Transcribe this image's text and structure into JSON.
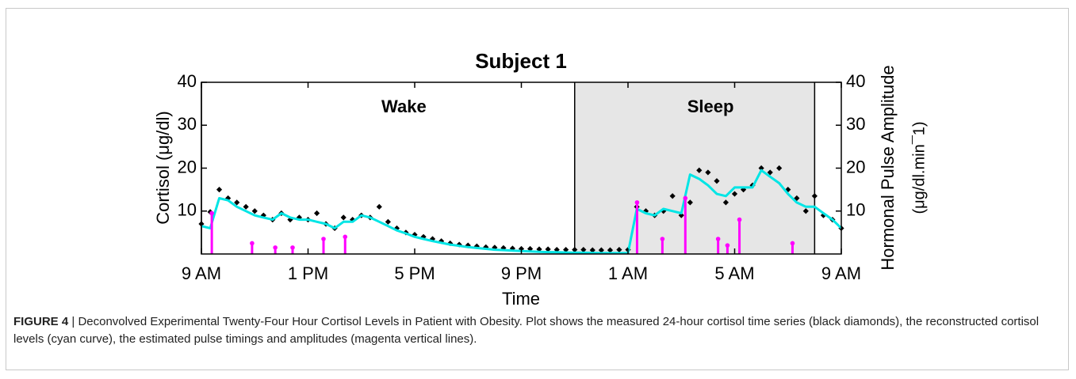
{
  "chart_data": {
    "type": "line",
    "title": "Subject 1",
    "xlabel": "Time",
    "ylabel": "Cortisol (μg/dl)",
    "y2label": [
      "Hormonal Pulse Amplitude",
      "(μg/dl.min¯1)"
    ],
    "xlim": [
      9,
      33
    ],
    "xticks": [
      {
        "value": 9,
        "label": "9 AM"
      },
      {
        "value": 13,
        "label": "1 PM"
      },
      {
        "value": 17,
        "label": "5 PM"
      },
      {
        "value": 21,
        "label": "9 PM"
      },
      {
        "value": 25,
        "label": "1 AM"
      },
      {
        "value": 29,
        "label": "5 AM"
      },
      {
        "value": 33,
        "label": "9 AM"
      }
    ],
    "ylim": [
      0,
      40
    ],
    "yticks": [
      10,
      20,
      30,
      40
    ],
    "y2lim": [
      0,
      40
    ],
    "y2ticks": [
      10,
      20,
      30,
      40
    ],
    "regions": [
      {
        "label": "Wake",
        "range": [
          9,
          23
        ]
      },
      {
        "label": "Sleep",
        "range": [
          23,
          32
        ],
        "color": "#e6e6e6"
      }
    ],
    "x": [
      9,
      9.33,
      9.67,
      10,
      10.33,
      10.67,
      11,
      11.33,
      11.67,
      12,
      12.33,
      12.67,
      13,
      13.33,
      13.67,
      14,
      14.33,
      14.67,
      15,
      15.33,
      15.67,
      16,
      16.33,
      16.67,
      17,
      17.33,
      17.67,
      18,
      18.33,
      18.67,
      19,
      19.33,
      19.67,
      20,
      20.33,
      20.67,
      21,
      21.33,
      21.67,
      22,
      22.33,
      22.67,
      23,
      23.33,
      23.67,
      24,
      24.33,
      24.67,
      25,
      25.33,
      25.67,
      26,
      26.33,
      26.67,
      27,
      27.33,
      27.67,
      28,
      28.33,
      28.67,
      29,
      29.33,
      29.67,
      30,
      30.33,
      30.67,
      31,
      31.33,
      31.67,
      32,
      32.33,
      32.67,
      33
    ],
    "series": [
      {
        "type": "scatter",
        "color": "#000000",
        "values": [
          7,
          9.8,
          15,
          13,
          12,
          11,
          10,
          9,
          8,
          9.5,
          8,
          8.5,
          8,
          9.5,
          7,
          6,
          8.5,
          8,
          9,
          8.5,
          11,
          7.5,
          6,
          5,
          4.5,
          4,
          3.5,
          3,
          2.5,
          2.2,
          2,
          1.8,
          1.6,
          1.5,
          1.4,
          1.3,
          1.2,
          1.2,
          1.1,
          1.1,
          1,
          1,
          1,
          1,
          0.9,
          0.9,
          0.9,
          1,
          1,
          11,
          10,
          9,
          10,
          13.5,
          9,
          12,
          19.5,
          19,
          17,
          12,
          14,
          15,
          16,
          20,
          19,
          20,
          15,
          13,
          10,
          13.5,
          9,
          8,
          6
        ]
      },
      {
        "type": "line",
        "color": "#00e5e5",
        "values": [
          6.5,
          6,
          13,
          12.5,
          11,
          10,
          9,
          8.5,
          8,
          9.5,
          8.5,
          8,
          8,
          7.5,
          7,
          6,
          7.5,
          7.5,
          9,
          8.5,
          7.5,
          6.5,
          5.5,
          4.8,
          4,
          3.5,
          3,
          2.6,
          2.2,
          1.9,
          1.6,
          1.4,
          1.2,
          1,
          0.9,
          0.8,
          0.7,
          0.6,
          0.5,
          0.45,
          0.4,
          0.35,
          0.3,
          0.3,
          0.25,
          0.2,
          0.2,
          0.2,
          0.2,
          10.5,
          9.5,
          9,
          10.5,
          10,
          9.5,
          18.5,
          17.5,
          16,
          14,
          13.5,
          15.5,
          15.5,
          15.5,
          19.5,
          18,
          16.5,
          14,
          12,
          11,
          11,
          9.5,
          8,
          6
        ]
      },
      {
        "type": "stem",
        "axis": "y2",
        "color": "#ff00ff",
        "x": [
          9.39,
          10.9,
          11.77,
          12.42,
          13.58,
          14.39,
          25.34,
          26.29,
          27.15,
          28.38,
          28.73,
          29.18,
          31.17
        ],
        "values": [
          9.5,
          2.5,
          1.5,
          1.5,
          3.5,
          4,
          12,
          3.5,
          13,
          3.5,
          2,
          8,
          2.5
        ]
      }
    ]
  },
  "caption": {
    "label": "FIGURE 4",
    "separator": "|",
    "text": "Deconvolved Experimental Twenty-Four Hour Cortisol Levels in Patient with Obesity. Plot shows the measured 24-hour cortisol time series (black diamonds), the reconstructed cortisol levels (cyan curve), the estimated pulse timings and amplitudes (magenta vertical lines)."
  }
}
